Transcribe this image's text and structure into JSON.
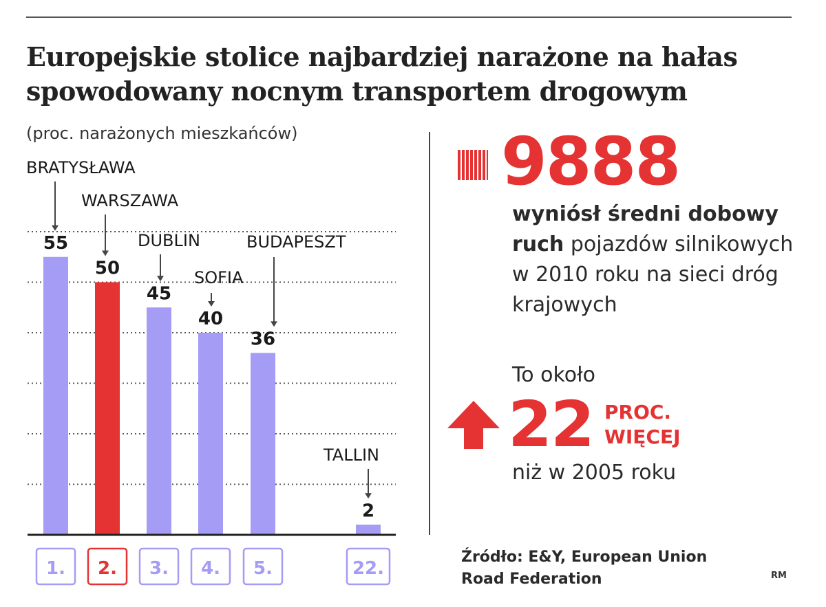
{
  "title_lines": [
    "Europejskie stolice najbardziej narażone na hałas",
    "spowodowany nocnym transportem drogowym"
  ],
  "subtitle": "(proc. narażonych mieszkańców)",
  "colors": {
    "bar": "#a49cf5",
    "highlight": "#e53232",
    "rank_box": "#a49cf5",
    "text": "#1a1a1a"
  },
  "chart_data": {
    "type": "bar",
    "title": "Europejskie stolice najbardziej narażone na hałas spowodowany nocnym transportem drogowym",
    "subtitle": "(proc. narażonych mieszkańców)",
    "categories": [
      "BRATYSŁAWA",
      "WARSZAWA",
      "DUBLIN",
      "SOFIA",
      "BUDAPESZT",
      "TALLIN"
    ],
    "values": [
      55,
      50,
      45,
      40,
      36,
      2
    ],
    "value_labels": [
      "55",
      "50",
      "45",
      "40",
      "36",
      "2"
    ],
    "ranks": [
      "1.",
      "2.",
      "3.",
      "4.",
      "5.",
      "22."
    ],
    "highlight_index": 1,
    "ylim": [
      0,
      60
    ],
    "grid": true,
    "gridlines": [
      10,
      20,
      30,
      40,
      50,
      60
    ]
  },
  "stat": {
    "number": "9888",
    "desc_bold": "wyniósł średni dobowy ruch",
    "desc_rest": "pojazdów silnikowych w 2010 roku na sieci dróg krajowych",
    "intro": "To około",
    "percent": "22",
    "percent_label_1": "PROC.",
    "percent_label_2": "WIĘCEJ",
    "outro": "niż w 2005 roku",
    "arrow_icon": "arrow-up-icon"
  },
  "source_line1": "Źródło: E&Y, European Union",
  "source_line2": "Road Federation",
  "credit": "RM"
}
